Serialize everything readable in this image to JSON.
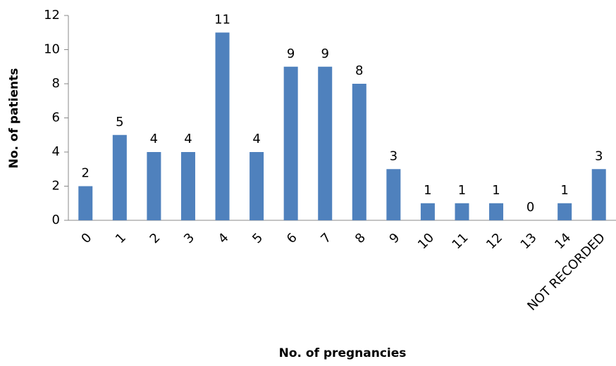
{
  "chart_data": {
    "type": "bar",
    "x_label": "No. of pregnancies",
    "y_label": "No. of patients",
    "categories": [
      "0",
      "1",
      "2",
      "3",
      "4",
      "5",
      "6",
      "7",
      "8",
      "9",
      "10",
      "11",
      "12",
      "13",
      "14",
      "NOT RECORDED"
    ],
    "values": [
      2,
      5,
      4,
      4,
      11,
      4,
      9,
      9,
      8,
      3,
      1,
      1,
      1,
      0,
      1,
      3
    ],
    "color": "#4f81bd",
    "ylim": [
      0,
      12
    ],
    "yticks": [
      0,
      2,
      4,
      6,
      8,
      10,
      12
    ],
    "grid": false
  }
}
